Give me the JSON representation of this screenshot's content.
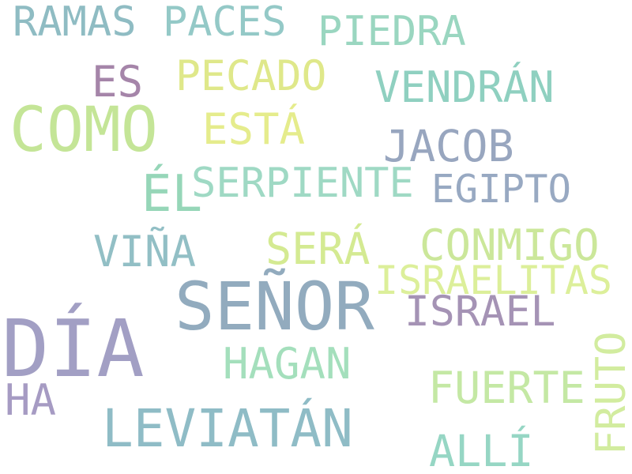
{
  "word_cloud": {
    "words": [
      {
        "text": "RAMAS",
        "color": "#8fbcc3"
      },
      {
        "text": "PACES",
        "color": "#94c9c7"
      },
      {
        "text": "PIEDRA",
        "color": "#9ad6c0"
      },
      {
        "text": "ES",
        "color": "#a585a9"
      },
      {
        "text": "PECADO",
        "color": "#dfe88a"
      },
      {
        "text": "VENDRÁN",
        "color": "#8fd0c0"
      },
      {
        "text": "COMO",
        "color": "#c4e597"
      },
      {
        "text": "ESTÁ",
        "color": "#e5ec8c"
      },
      {
        "text": "JACOB",
        "color": "#98a6bf"
      },
      {
        "text": "ÉL",
        "color": "#96d6b8"
      },
      {
        "text": "SERPIENTE",
        "color": "#9fd9c4"
      },
      {
        "text": "EGIPTO",
        "color": "#98a9c2"
      },
      {
        "text": "VIÑA",
        "color": "#92bfc5"
      },
      {
        "text": "SERÁ",
        "color": "#d4ea92"
      },
      {
        "text": "CONMIGO",
        "color": "#cbe79a"
      },
      {
        "text": "ISRAELITAS",
        "color": "#dcef9a"
      },
      {
        "text": "SEÑOR",
        "color": "#92abbe"
      },
      {
        "text": "ISRAEL",
        "color": "#a593b5"
      },
      {
        "text": "DÍA",
        "color": "#a29fc4"
      },
      {
        "text": "HAGAN",
        "color": "#a4dfbc"
      },
      {
        "text": "FRUTO",
        "color": "#d2ec9f"
      },
      {
        "text": "FUERTE",
        "color": "#c4e8a4"
      },
      {
        "text": "HA",
        "color": "#a69bc3"
      },
      {
        "text": "LEVIATÁN",
        "color": "#8fbcc6"
      },
      {
        "text": "ALLÍ",
        "color": "#96d6c4"
      }
    ]
  }
}
